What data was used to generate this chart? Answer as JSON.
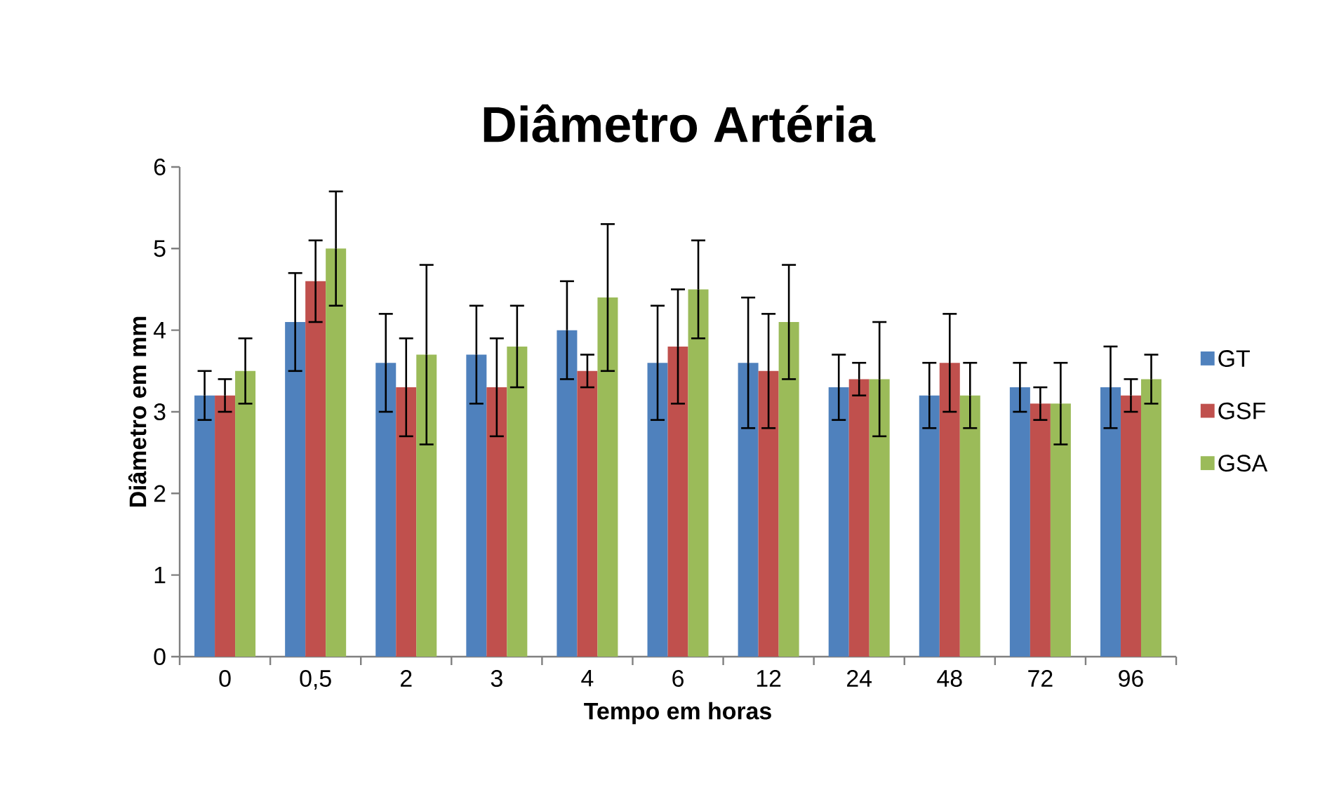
{
  "chart_data": {
    "type": "bar",
    "title": "Diâmetro Artéria",
    "xlabel": "Tempo em horas",
    "ylabel": "Diâmetro em mm",
    "categories": [
      "0",
      "0,5",
      "2",
      "3",
      "4",
      "6",
      "12",
      "24",
      "48",
      "72",
      "96"
    ],
    "series": [
      {
        "name": "GT",
        "color": "#4f81bd",
        "values": [
          3.2,
          4.1,
          3.6,
          3.7,
          4.0,
          3.6,
          3.6,
          3.3,
          3.2,
          3.3,
          3.3
        ],
        "errors": [
          0.3,
          0.6,
          0.6,
          0.6,
          0.6,
          0.7,
          0.8,
          0.4,
          0.4,
          0.3,
          0.5
        ]
      },
      {
        "name": "GSF",
        "color": "#c0504d",
        "values": [
          3.2,
          4.6,
          3.3,
          3.3,
          3.5,
          3.8,
          3.5,
          3.4,
          3.6,
          3.1,
          3.2
        ],
        "errors": [
          0.2,
          0.5,
          0.6,
          0.6,
          0.2,
          0.7,
          0.7,
          0.2,
          0.6,
          0.2,
          0.2
        ]
      },
      {
        "name": "GSA",
        "color": "#9bbb59",
        "values": [
          3.5,
          5.0,
          3.7,
          3.8,
          4.4,
          4.5,
          4.1,
          3.4,
          3.2,
          3.1,
          3.4
        ],
        "errors": [
          0.4,
          0.7,
          1.1,
          0.5,
          0.9,
          0.6,
          0.7,
          0.7,
          0.4,
          0.5,
          0.3
        ]
      }
    ],
    "ylim": [
      0,
      6
    ],
    "yticks": [
      0,
      1,
      2,
      3,
      4,
      5,
      6
    ],
    "legend": "right"
  }
}
